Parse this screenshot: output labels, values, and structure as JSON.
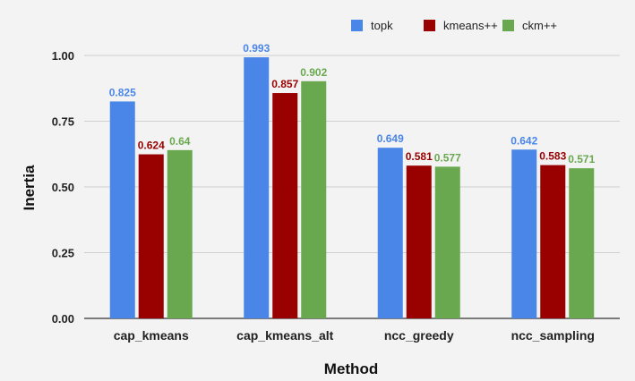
{
  "chart_data": {
    "type": "bar",
    "title": "",
    "xlabel": "Method",
    "ylabel": "Inertia",
    "categories": [
      "cap_kmeans",
      "cap_kmeans_alt",
      "ncc_greedy",
      "ncc_sampling"
    ],
    "series": [
      {
        "name": "topk",
        "color": "#4a86e8",
        "values": [
          0.825,
          0.993,
          0.649,
          0.642
        ],
        "labels": [
          "0.825",
          "0.993",
          "0.649",
          "0.642"
        ]
      },
      {
        "name": "kmeans++",
        "color": "#990000",
        "values": [
          0.624,
          0.857,
          0.581,
          0.583
        ],
        "labels": [
          "0.624",
          "0.857",
          "0.581",
          "0.583"
        ]
      },
      {
        "name": "ckm++",
        "color": "#6aa84f",
        "values": [
          0.64,
          0.902,
          0.577,
          0.571
        ],
        "labels": [
          "0.64",
          "0.902",
          "0.577",
          "0.571"
        ]
      }
    ],
    "ylim": [
      0,
      1.0
    ],
    "yticks": [
      "0.00",
      "0.25",
      "0.50",
      "0.75",
      "1.00"
    ],
    "ytick_values": [
      0,
      0.25,
      0.5,
      0.75,
      1.0
    ],
    "grid": true,
    "legend_position": "top-right"
  }
}
